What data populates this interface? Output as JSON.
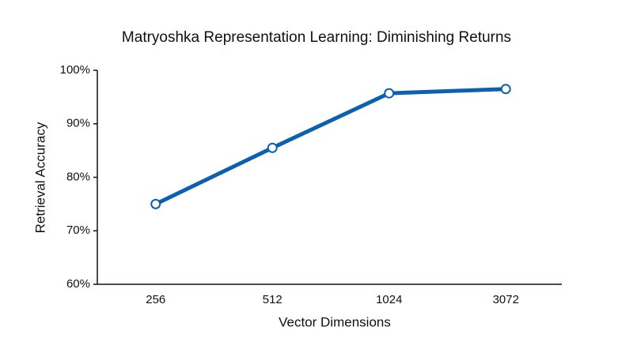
{
  "chart_data": {
    "type": "line",
    "title": "Matryoshka Representation Learning: Diminishing Returns",
    "x_label": "Vector Dimensions",
    "y_label": "Retrieval Accuracy",
    "categories": [
      "256",
      "512",
      "1024",
      "3072"
    ],
    "series": [
      {
        "name": "Retrieval Accuracy",
        "color": "#0d5fb0",
        "values": [
          75,
          85.5,
          95.7,
          96.5
        ]
      }
    ],
    "ylim": [
      60,
      100
    ],
    "yticks": [
      {
        "value": 60,
        "label": "60%"
      },
      {
        "value": 70,
        "label": "70%"
      },
      {
        "value": 80,
        "label": "80%"
      },
      {
        "value": 90,
        "label": "90%"
      },
      {
        "value": 100,
        "label": "100%"
      }
    ],
    "grid": false
  }
}
